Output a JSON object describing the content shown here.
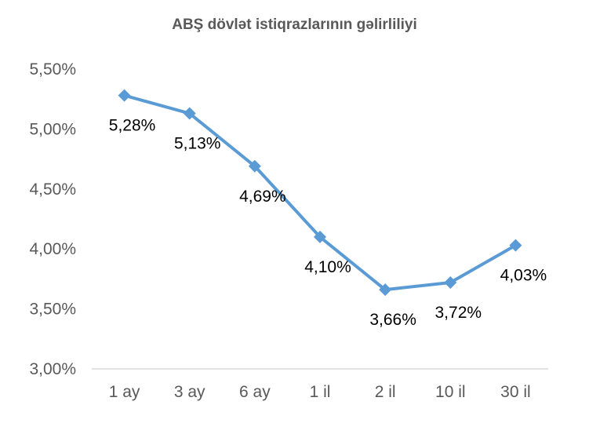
{
  "chart_data": {
    "type": "line",
    "title": "ABŞ dövlət istiqrazlarının gəlirliliyi",
    "categories": [
      "1 ay",
      "3 ay",
      "6 ay",
      "1 il",
      "2 il",
      "10 il",
      "30 il"
    ],
    "series": [
      {
        "values": [
          5.28,
          5.13,
          4.69,
          4.1,
          3.66,
          3.72,
          4.03
        ],
        "color": "#5B9BD5",
        "marker": "diamond"
      }
    ],
    "data_labels": [
      "5,28%",
      "5,13%",
      "4,69%",
      "4,10%",
      "3,66%",
      "3,72%",
      "4,03%"
    ],
    "y_ticks": [
      3.0,
      3.5,
      4.0,
      4.5,
      5.0,
      5.5
    ],
    "y_tick_labels": [
      "3,00%",
      "3,50%",
      "4,00%",
      "4,50%",
      "5,00%",
      "5,50%"
    ],
    "ylim": [
      3.0,
      5.5
    ],
    "xlabel": "",
    "ylabel": "",
    "grid": false,
    "legend": "none"
  }
}
